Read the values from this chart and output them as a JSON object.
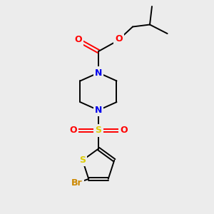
{
  "background_color": "#ececec",
  "bond_color": "#000000",
  "colors": {
    "N": "#0000ee",
    "O": "#ff0000",
    "S_sulfonyl": "#ddcc00",
    "S_thio": "#ddcc00",
    "Br": "#cc8800",
    "C": "#000000"
  },
  "figsize": [
    3.0,
    3.0
  ],
  "dpi": 100
}
